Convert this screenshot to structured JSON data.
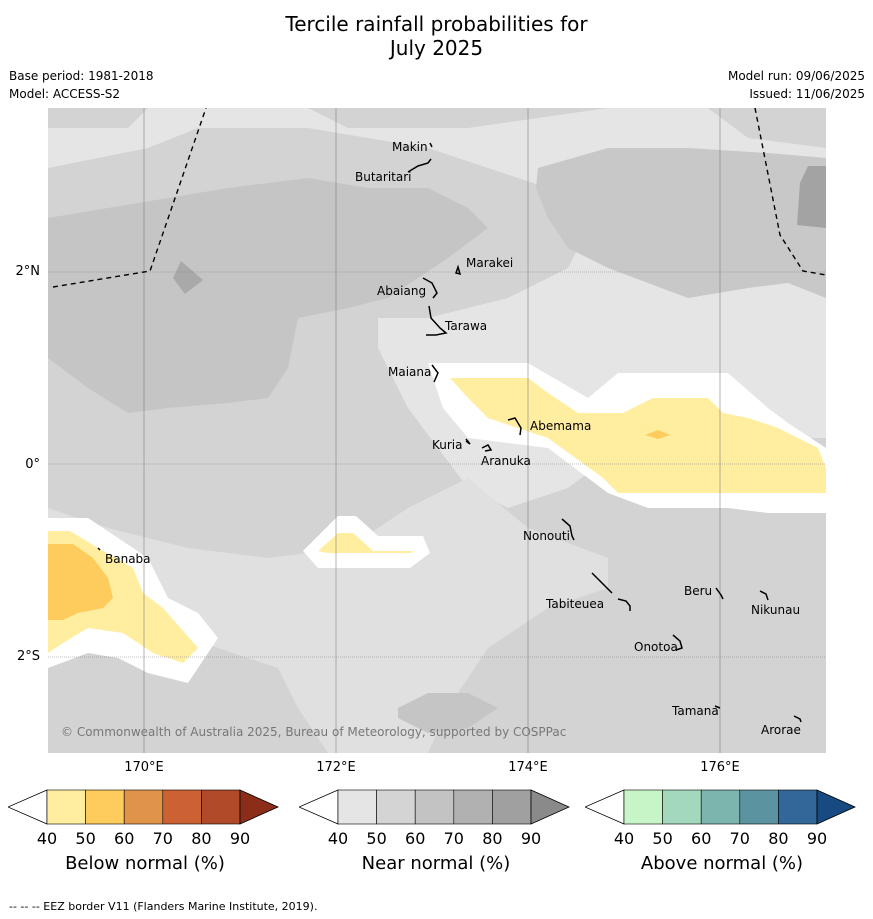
{
  "header": {
    "title_line1": "Tercile rainfall probabilities for",
    "title_line2": "July 2025",
    "base_period": "Base period: 1981-2018",
    "model": "Model: ACCESS-S2",
    "model_run": "Model run: 09/06/2025",
    "issued": "Issued: 11/06/2025"
  },
  "map": {
    "lat_labels": [
      "2°N",
      "0°",
      "2°S"
    ],
    "lon_labels": [
      "170°E",
      "172°E",
      "174°E",
      "176°E"
    ],
    "places": {
      "makin": "Makin",
      "butaritari": "Butaritari",
      "marakei": "Marakei",
      "abaiang": "Abaiang",
      "tarawa": "Tarawa",
      "maiana": "Maiana",
      "abemama": "Abemama",
      "kuria": "Kuria",
      "aranuka": "Aranuka",
      "nonouti": "Nonouti",
      "banaba": "Banaba",
      "beru": "Beru",
      "tabiteuea": "Tabiteuea",
      "nikunau": "Nikunau",
      "onotoa": "Onotoa",
      "tamana": "Tamana",
      "arorae": "Arorae"
    },
    "copyright": "© Commonwealth of Australia 2025, Bureau of Meteorology, supported by COSPPac"
  },
  "colorbars": {
    "below": {
      "title": "Below normal (%)",
      "ticks": [
        "40",
        "50",
        "60",
        "70",
        "80",
        "90"
      ],
      "colors": [
        "#ffeda0",
        "#fecc5c",
        "#e0944a",
        "#cc6233",
        "#b04a28",
        "#8c2d19"
      ]
    },
    "near": {
      "title": "Near normal (%)",
      "ticks": [
        "40",
        "50",
        "60",
        "70",
        "80",
        "90"
      ],
      "colors": [
        "#e5e5e5",
        "#d4d4d4",
        "#c3c3c3",
        "#b1b1b1",
        "#a0a0a0",
        "#8a8a8a"
      ]
    },
    "above": {
      "title": "Above normal (%)",
      "ticks": [
        "40",
        "50",
        "60",
        "70",
        "80",
        "90"
      ],
      "colors": [
        "#c8f5c8",
        "#a3d8bd",
        "#7cb5ae",
        "#5c93a0",
        "#336699",
        "#164a80"
      ]
    }
  },
  "footer": {
    "eez_note": "--  --  -- EEZ border V11 (Flanders Marine Institute, 2019)."
  }
}
